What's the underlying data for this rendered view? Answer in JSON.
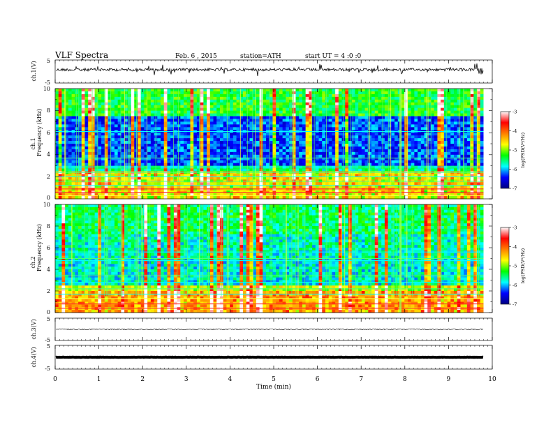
{
  "header": {
    "title": "VLF  Spectra",
    "date": "Feb. 6  , 2015",
    "station": "station=ATH",
    "start": "start  UT  =   4  :0  :0"
  },
  "chart_data": [
    {
      "type": "line",
      "panel": "ch1-waveform",
      "ylabel": "ch.1(V)",
      "yticks": [
        "5",
        "-5"
      ],
      "ylim": [
        -5,
        5
      ],
      "level": 0.8
    },
    {
      "type": "heatmap",
      "panel": "ch1-spectrogram",
      "ylabel": "Frequency  (kHz)",
      "ylabel_ch": "ch.1",
      "xlim": [
        0,
        10
      ],
      "ylim": [
        0,
        10
      ],
      "yticks": [
        "0",
        "2",
        "4",
        "6",
        "8",
        "10"
      ],
      "data_end_min": 9.8,
      "colorbar": {
        "label": "log(PSD(V²/Hz)",
        "ticks": [
          "-3",
          "-4",
          "-5",
          "-6",
          "-7"
        ],
        "range": [
          -7,
          -3
        ],
        "colors": [
          "#000080",
          "#0000ff",
          "#00ffff",
          "#00ff00",
          "#ffff00",
          "#ff8000",
          "#ff0000",
          "#ffffff"
        ]
      }
    },
    {
      "type": "heatmap",
      "panel": "ch2-spectrogram",
      "ylabel": "Frequency  (kHz)",
      "ylabel_ch": "ch.2",
      "xlim": [
        0,
        10
      ],
      "ylim": [
        0,
        10
      ],
      "yticks": [
        "0",
        "2",
        "4",
        "6",
        "8",
        "10"
      ],
      "data_end_min": 9.8,
      "colorbar": {
        "label": "log(PSD(V²/Hz)",
        "ticks": [
          "-3",
          "-4",
          "-5",
          "-6",
          "-7"
        ],
        "range": [
          -7,
          -3
        ]
      }
    },
    {
      "type": "line",
      "panel": "ch3-waveform",
      "ylabel": "ch.3(V)",
      "yticks": [
        "5",
        "-5"
      ],
      "ylim": [
        -5,
        5
      ],
      "level": 0
    },
    {
      "type": "line",
      "panel": "ch4-waveform",
      "ylabel": "ch.4(V)",
      "yticks": [
        "5",
        "-5"
      ],
      "ylim": [
        -5,
        5
      ],
      "level": 0
    }
  ],
  "xaxis": {
    "label": "Time  (min)",
    "ticks": [
      "0",
      "1",
      "2",
      "3",
      "4",
      "5",
      "6",
      "7",
      "8",
      "9",
      "10"
    ]
  }
}
